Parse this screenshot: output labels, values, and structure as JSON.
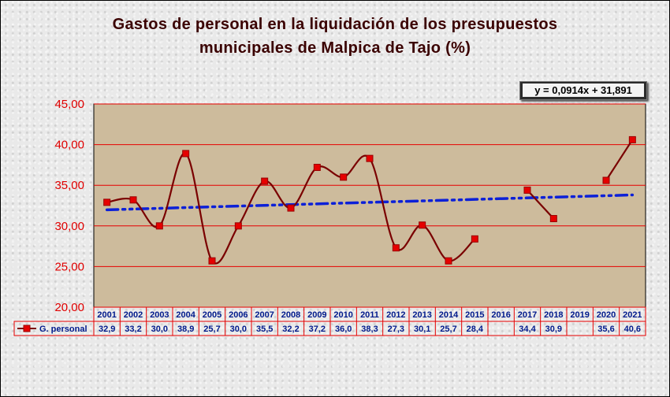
{
  "chart_data": {
    "type": "line",
    "title_lines": [
      "Gastos de personal  en la liquidación  de los presupuestos",
      "municipales  de Malpica  de Tajo (%)"
    ],
    "trendline_equation": "y = 0,0914x + 31,891",
    "trendline": {
      "slope": 0.0914,
      "intercept": 31.891
    },
    "ylim": [
      20,
      45
    ],
    "yticks": [
      "20,00",
      "25,00",
      "30,00",
      "35,00",
      "40,00",
      "45,00"
    ],
    "categories": [
      "2001",
      "2002",
      "2003",
      "2004",
      "2005",
      "2006",
      "2007",
      "2008",
      "2009",
      "2010",
      "2011",
      "2012",
      "2013",
      "2014",
      "2015",
      "2016",
      "2017",
      "2018",
      "2019",
      "2020",
      "2021"
    ],
    "series": [
      {
        "name": "G. personal",
        "values": [
          32.9,
          33.2,
          30.0,
          38.9,
          25.7,
          30.0,
          35.5,
          32.2,
          37.2,
          36.0,
          38.3,
          27.3,
          30.1,
          25.7,
          28.4,
          null,
          34.4,
          30.9,
          null,
          35.6,
          40.6
        ],
        "labels": [
          "32,9",
          "33,2",
          "30,0",
          "38,9",
          "25,7",
          "30,0",
          "35,5",
          "32,2",
          "37,2",
          "36,0",
          "38,3",
          "27,3",
          "30,1",
          "25,7",
          "28,4",
          "",
          "34,4",
          "30,9",
          "",
          "35,6",
          "40,6"
        ]
      }
    ],
    "grid": true,
    "legend": "data-table",
    "colors": {
      "line": "#7a0000",
      "marker": "#e60000",
      "trend": "#0c20d8",
      "plot_bg": "#cdbb9c",
      "gridline": "#e60000",
      "table_text": "#001a8c",
      "table_border": "#e60000"
    }
  }
}
